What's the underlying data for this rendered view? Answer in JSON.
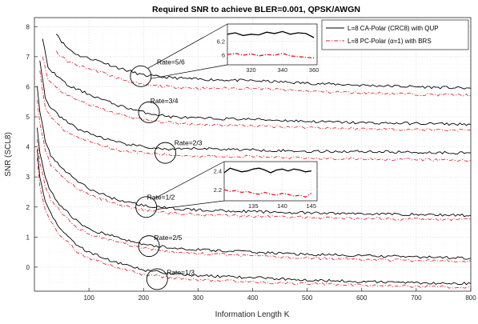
{
  "chart_data": {
    "type": "line",
    "title": "Required SNR to achieve BLER=0.001, QPSK/AWGN",
    "xlabel": "Information Length K",
    "ylabel": "SNR (SCL8)",
    "xlim": [
      0,
      800
    ],
    "ylim": [
      -0.8,
      8.3
    ],
    "xticks": [
      100,
      200,
      300,
      400,
      500,
      600,
      700,
      800
    ],
    "yticks": [
      0,
      1,
      2,
      3,
      4,
      5,
      6,
      7,
      8
    ],
    "grid": true,
    "legend_position": "top-right",
    "legend": [
      {
        "label": "L=8 CA-Polar (CRC8) with QUP",
        "color": "#000000",
        "dash": "solid"
      },
      {
        "label": "L=8 PC-Polar (α=1) with BRS",
        "color": "#e8141e",
        "dash": "dashdot"
      }
    ],
    "rate_labels": [
      {
        "text": "Rate=5/6",
        "x": 250,
        "y": 6.75
      },
      {
        "text": "Rate=3/4",
        "x": 238,
        "y": 5.45
      },
      {
        "text": "Rate=2/3",
        "x": 282,
        "y": 4.05
      },
      {
        "text": "Rate=1/2",
        "x": 232,
        "y": 2.25
      },
      {
        "text": "Rate=2/5",
        "x": 245,
        "y": 0.9
      },
      {
        "text": "Rate=1/3",
        "x": 268,
        "y": -0.25
      }
    ],
    "circles": [
      {
        "x": 195,
        "y": 6.35
      },
      {
        "x": 210,
        "y": 5.15
      },
      {
        "x": 240,
        "y": 3.8
      },
      {
        "x": 205,
        "y": 2.0
      },
      {
        "x": 210,
        "y": 0.7
      },
      {
        "x": 225,
        "y": -0.4
      }
    ],
    "series": [
      {
        "name": "L=8 CA-Polar (CRC8) with QUP",
        "group": "Rate=5/6",
        "color": "#000000",
        "dash": "solid",
        "x": [
          40,
          50,
          60,
          80,
          100,
          120,
          150,
          200,
          250,
          300,
          400,
          500,
          600,
          700,
          800
        ],
        "y": [
          7.8,
          7.5,
          7.3,
          7.05,
          6.95,
          6.85,
          6.65,
          6.38,
          6.3,
          6.25,
          6.2,
          6.12,
          6.05,
          6.0,
          5.95
        ]
      },
      {
        "name": "L=8 PC-Polar (α=1) with BRS",
        "group": "Rate=5/6",
        "color": "#e8141e",
        "dash": "dashdot",
        "x": [
          40,
          50,
          60,
          80,
          100,
          120,
          150,
          200,
          250,
          300,
          400,
          500,
          600,
          700,
          800
        ],
        "y": [
          7.15,
          7.0,
          6.85,
          6.7,
          6.6,
          6.5,
          6.3,
          6.05,
          6.0,
          5.95,
          5.95,
          5.85,
          5.8,
          5.75,
          5.72
        ]
      },
      {
        "name": "L=8 CA-Polar (CRC8) with QUP",
        "group": "Rate=3/4",
        "color": "#000000",
        "dash": "solid",
        "x": [
          15,
          25,
          40,
          60,
          80,
          100,
          150,
          200,
          250,
          300,
          400,
          500,
          600,
          700,
          800
        ],
        "y": [
          7.6,
          6.6,
          6.4,
          6.05,
          5.9,
          5.75,
          5.4,
          5.15,
          5.0,
          4.95,
          4.92,
          4.85,
          4.8,
          4.78,
          4.75
        ]
      },
      {
        "name": "L=8 PC-Polar (α=1) with BRS",
        "group": "Rate=3/4",
        "color": "#e8141e",
        "dash": "dashdot",
        "x": [
          15,
          25,
          40,
          60,
          80,
          100,
          150,
          200,
          250,
          300,
          400,
          500,
          600,
          700,
          800
        ],
        "y": [
          7.0,
          6.2,
          6.0,
          5.7,
          5.55,
          5.4,
          5.1,
          4.9,
          4.8,
          4.75,
          4.7,
          4.65,
          4.6,
          4.58,
          4.55
        ]
      },
      {
        "name": "L=8 CA-Polar (CRC8) with QUP",
        "group": "Rate=2/3",
        "color": "#000000",
        "dash": "solid",
        "x": [
          10,
          20,
          30,
          50,
          80,
          100,
          150,
          200,
          250,
          300,
          400,
          500,
          600,
          700,
          800
        ],
        "y": [
          6.9,
          5.6,
          5.3,
          4.95,
          4.6,
          4.45,
          4.15,
          4.0,
          3.9,
          3.95,
          3.9,
          3.85,
          3.85,
          3.82,
          3.8
        ]
      },
      {
        "name": "L=8 PC-Polar (α=1) with BRS",
        "group": "Rate=2/3",
        "color": "#e8141e",
        "dash": "dashdot",
        "x": [
          10,
          20,
          30,
          50,
          80,
          100,
          150,
          200,
          250,
          300,
          400,
          500,
          600,
          700,
          800
        ],
        "y": [
          6.5,
          5.3,
          5.0,
          4.6,
          4.3,
          4.2,
          3.9,
          3.8,
          3.72,
          3.7,
          3.68,
          3.62,
          3.6,
          3.58,
          3.55
        ]
      },
      {
        "name": "L=8 CA-Polar (CRC8) with QUP",
        "group": "Rate=1/2",
        "color": "#000000",
        "dash": "solid",
        "x": [
          5,
          10,
          20,
          30,
          50,
          80,
          100,
          150,
          200,
          250,
          300,
          400,
          500,
          600,
          700,
          800
        ],
        "y": [
          6.0,
          5.2,
          4.2,
          3.7,
          3.3,
          2.85,
          2.6,
          2.25,
          2.05,
          1.95,
          1.9,
          1.85,
          1.8,
          1.78,
          1.75,
          1.72
        ]
      },
      {
        "name": "L=8 PC-Polar (α=1) with BRS",
        "group": "Rate=1/2",
        "color": "#e8141e",
        "dash": "dashdot",
        "x": [
          5,
          10,
          20,
          30,
          50,
          80,
          100,
          150,
          200,
          250,
          300,
          400,
          500,
          600,
          700,
          800
        ],
        "y": [
          5.6,
          4.8,
          3.9,
          3.4,
          3.05,
          2.6,
          2.4,
          2.1,
          1.9,
          1.8,
          1.75,
          1.7,
          1.65,
          1.62,
          1.6,
          1.58
        ]
      },
      {
        "name": "L=8 CA-Polar (CRC8) with QUP",
        "group": "Rate=2/5",
        "color": "#000000",
        "dash": "solid",
        "x": [
          5,
          10,
          20,
          30,
          50,
          80,
          100,
          150,
          200,
          250,
          300,
          400,
          500,
          600,
          700,
          800
        ],
        "y": [
          4.6,
          3.8,
          3.0,
          2.5,
          2.0,
          1.5,
          1.25,
          1.0,
          0.75,
          0.65,
          0.58,
          0.5,
          0.42,
          0.38,
          0.34,
          0.3
        ]
      },
      {
        "name": "L=8 PC-Polar (α=1) with BRS",
        "group": "Rate=2/5",
        "color": "#e8141e",
        "dash": "dashdot",
        "x": [
          5,
          10,
          20,
          30,
          50,
          80,
          100,
          150,
          200,
          250,
          300,
          400,
          500,
          600,
          700,
          800
        ],
        "y": [
          4.3,
          3.5,
          2.7,
          2.25,
          1.8,
          1.3,
          1.1,
          0.85,
          0.62,
          0.52,
          0.45,
          0.38,
          0.3,
          0.26,
          0.22,
          0.2
        ]
      },
      {
        "name": "L=8 CA-Polar (CRC8) with QUP",
        "group": "Rate=1/3",
        "color": "#000000",
        "dash": "solid",
        "x": [
          5,
          10,
          20,
          30,
          50,
          80,
          100,
          150,
          200,
          250,
          300,
          400,
          500,
          600,
          700,
          800
        ],
        "y": [
          3.9,
          3.0,
          2.2,
          1.8,
          1.2,
          0.7,
          0.5,
          0.15,
          -0.1,
          -0.2,
          -0.28,
          -0.35,
          -0.42,
          -0.48,
          -0.52,
          -0.55
        ]
      },
      {
        "name": "L=8 PC-Polar (α=1) with BRS",
        "group": "Rate=1/3",
        "color": "#e8141e",
        "dash": "dashdot",
        "x": [
          5,
          10,
          20,
          30,
          50,
          80,
          100,
          150,
          200,
          250,
          300,
          400,
          500,
          600,
          700,
          800
        ],
        "y": [
          3.6,
          2.7,
          1.9,
          1.5,
          1.0,
          0.5,
          0.3,
          0.0,
          -0.25,
          -0.35,
          -0.42,
          -0.5,
          -0.55,
          -0.6,
          -0.64,
          -0.67
        ]
      }
    ],
    "insets": [
      {
        "name": "inset-rate-5-6",
        "anchor_circle": 0,
        "xlim": [
          305,
          362
        ],
        "ylim": [
          5.85,
          6.45
        ],
        "xticks": [
          320,
          340,
          360
        ],
        "yticks": [
          6,
          6.2
        ],
        "series": [
          {
            "color": "#000000",
            "dash": "solid",
            "x": [
              305,
              310,
              315,
              320,
              325,
              330,
              335,
              340,
              345,
              350,
              355,
              360
            ],
            "y": [
              6.3,
              6.32,
              6.28,
              6.3,
              6.29,
              6.33,
              6.31,
              6.34,
              6.3,
              6.32,
              6.31,
              6.25
            ]
          },
          {
            "color": "#e8141e",
            "dash": "dashdot",
            "x": [
              305,
              310,
              315,
              320,
              325,
              330,
              335,
              340,
              345,
              350,
              355,
              360
            ],
            "y": [
              6.0,
              6.02,
              5.99,
              6.01,
              5.98,
              6.0,
              5.99,
              6.02,
              5.98,
              5.97,
              5.96,
              5.95
            ]
          }
        ]
      },
      {
        "name": "inset-rate-1-2",
        "anchor_circle": 3,
        "xlim": [
          130,
          146
        ],
        "ylim": [
          2.08,
          2.5
        ],
        "xticks": [
          135,
          140,
          145
        ],
        "yticks": [
          2.2,
          2.4
        ],
        "series": [
          {
            "color": "#000000",
            "dash": "solid",
            "x": [
              130,
              131,
              132,
              133,
              134,
              135,
              136,
              137,
              138,
              139,
              140,
              141,
              142,
              143,
              144,
              145
            ],
            "y": [
              2.38,
              2.43,
              2.41,
              2.39,
              2.4,
              2.42,
              2.43,
              2.41,
              2.38,
              2.41,
              2.42,
              2.4,
              2.42,
              2.41,
              2.39,
              2.4
            ]
          },
          {
            "color": "#e8141e",
            "dash": "dashdot",
            "x": [
              130,
              131,
              132,
              133,
              134,
              135,
              136,
              137,
              138,
              139,
              140,
              141,
              142,
              143,
              144,
              145
            ],
            "y": [
              2.2,
              2.18,
              2.19,
              2.17,
              2.18,
              2.16,
              2.15,
              2.17,
              2.15,
              2.14,
              2.16,
              2.15,
              2.13,
              2.14,
              2.12,
              2.16
            ]
          }
        ]
      }
    ]
  }
}
